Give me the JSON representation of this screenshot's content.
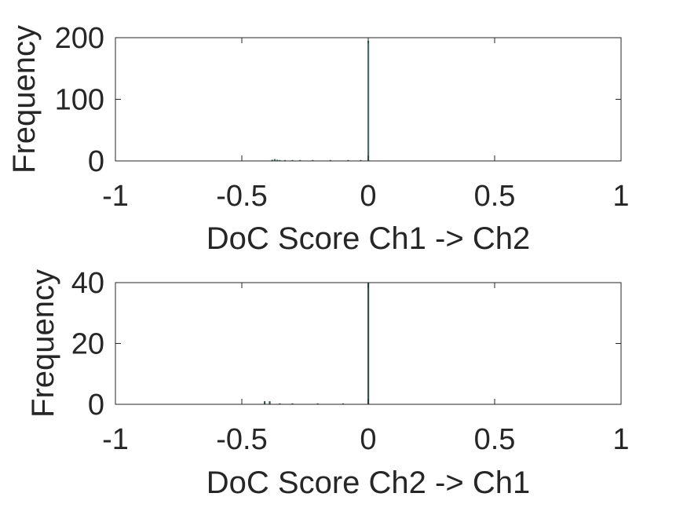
{
  "chart_data": [
    {
      "type": "bar",
      "xlabel": "DoC Score Ch1 -> Ch2",
      "ylabel": "Frequency",
      "xlim": [
        -1,
        1
      ],
      "ylim": [
        0,
        200
      ],
      "xticks": [
        "-1",
        "-0.5",
        "0",
        "0.5",
        "1"
      ],
      "yticks": [
        "0",
        "100",
        "200"
      ],
      "grid": false,
      "bar_color": "#4a6b6b",
      "bins": [
        {
          "x": -0.38,
          "value": 2
        },
        {
          "x": -0.37,
          "value": 3
        },
        {
          "x": -0.36,
          "value": 2
        },
        {
          "x": -0.35,
          "value": 1
        },
        {
          "x": -0.33,
          "value": 1
        },
        {
          "x": -0.3,
          "value": 1
        },
        {
          "x": -0.27,
          "value": 1
        },
        {
          "x": -0.22,
          "value": 1
        },
        {
          "x": -0.15,
          "value": 1
        },
        {
          "x": -0.08,
          "value": 1
        },
        {
          "x": -0.03,
          "value": 1
        },
        {
          "x": 0.0,
          "value": 195
        }
      ]
    },
    {
      "type": "bar",
      "xlabel": "DoC Score Ch2 -> Ch1",
      "ylabel": "Frequency",
      "xlim": [
        -1,
        1
      ],
      "ylim": [
        0,
        40
      ],
      "xticks": [
        "-1",
        "-0.5",
        "0",
        "0.5",
        "1"
      ],
      "yticks": [
        "0",
        "20",
        "40"
      ],
      "grid": false,
      "bar_color": "#3a4f4f",
      "bins": [
        {
          "x": -0.41,
          "value": 1
        },
        {
          "x": -0.39,
          "value": 1
        },
        {
          "x": -0.35,
          "value": 0.3
        },
        {
          "x": -0.3,
          "value": 0.3
        },
        {
          "x": -0.2,
          "value": 0.3
        },
        {
          "x": -0.1,
          "value": 0.3
        },
        {
          "x": 0.0,
          "value": 40
        }
      ]
    }
  ]
}
